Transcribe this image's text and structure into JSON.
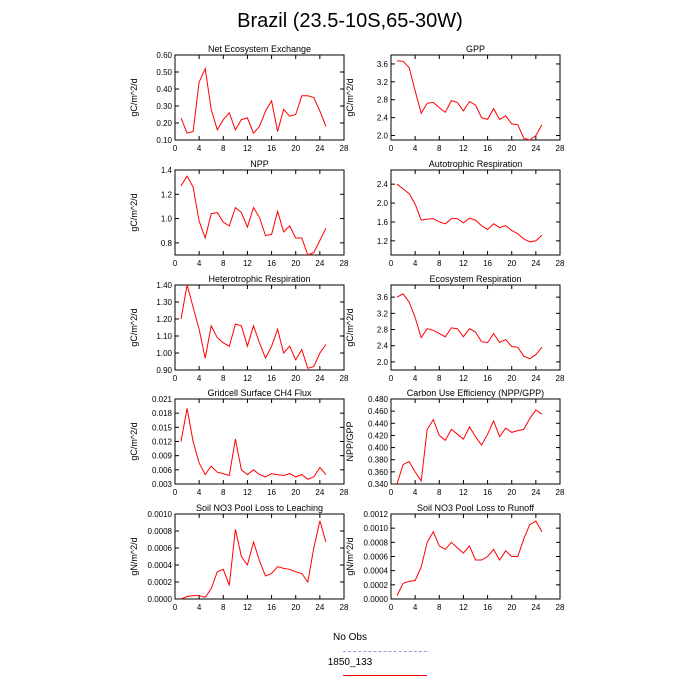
{
  "title": "Brazil (23.5-10S,65-30W)",
  "chart_data": [
    {
      "type": "line",
      "title": "Net Ecosystem Exchange",
      "ylabel": "gC/m^2/d",
      "xlim": [
        0,
        28
      ],
      "xticks": [
        "0",
        "4",
        "8",
        "12",
        "16",
        "20",
        "24",
        "28"
      ],
      "ylim": [
        0.1,
        0.6
      ],
      "yticks": [
        "0.10",
        "0.20",
        "0.30",
        "0.40",
        "0.50",
        "0.60"
      ],
      "series": [
        {
          "name": "1850_133",
          "color": "#ff0000",
          "x": [
            1,
            2,
            3,
            4,
            5,
            6,
            7,
            8,
            9,
            10,
            11,
            12,
            13,
            14,
            15,
            16,
            17,
            18,
            19,
            20,
            21,
            22,
            23,
            24,
            25
          ],
          "values": [
            0.23,
            0.14,
            0.15,
            0.44,
            0.52,
            0.28,
            0.16,
            0.22,
            0.26,
            0.16,
            0.22,
            0.23,
            0.14,
            0.18,
            0.27,
            0.33,
            0.15,
            0.28,
            0.24,
            0.25,
            0.36,
            0.36,
            0.35,
            0.27,
            0.18
          ]
        }
      ]
    },
    {
      "type": "line",
      "title": "GPP",
      "ylabel": "gC/m^2/d",
      "xlim": [
        0,
        28
      ],
      "xticks": [
        "0",
        "4",
        "8",
        "12",
        "16",
        "20",
        "24",
        "28"
      ],
      "ylim": [
        1.9,
        3.8
      ],
      "yticks": [
        "2.0",
        "2.4",
        "2.8",
        "3.2",
        "3.6"
      ],
      "series": [
        {
          "name": "1850_133",
          "color": "#ff0000",
          "x": [
            1,
            2,
            3,
            4,
            5,
            6,
            7,
            8,
            9,
            10,
            11,
            12,
            13,
            14,
            15,
            16,
            17,
            18,
            19,
            20,
            21,
            22,
            23,
            24,
            25
          ],
          "values": [
            3.67,
            3.66,
            3.52,
            3.0,
            2.5,
            2.72,
            2.74,
            2.62,
            2.52,
            2.78,
            2.74,
            2.55,
            2.76,
            2.68,
            2.4,
            2.36,
            2.6,
            2.36,
            2.44,
            2.26,
            2.24,
            1.94,
            1.9,
            2.0,
            2.24
          ]
        }
      ]
    },
    {
      "type": "line",
      "title": "NPP",
      "ylabel": "gC/m^2/d",
      "xlim": [
        0,
        28
      ],
      "xticks": [
        "0",
        "4",
        "8",
        "12",
        "16",
        "20",
        "24",
        "28"
      ],
      "ylim": [
        0.7,
        1.4
      ],
      "yticks": [
        "0.8",
        "1.0",
        "1.2",
        "1.4"
      ],
      "series": [
        {
          "name": "1850_133",
          "color": "#ff0000",
          "x": [
            1,
            2,
            3,
            4,
            5,
            6,
            7,
            8,
            9,
            10,
            11,
            12,
            13,
            14,
            15,
            16,
            17,
            18,
            19,
            20,
            21,
            22,
            23,
            24,
            25
          ],
          "values": [
            1.27,
            1.35,
            1.26,
            0.98,
            0.84,
            1.04,
            1.05,
            0.97,
            0.94,
            1.09,
            1.05,
            0.93,
            1.09,
            1.01,
            0.86,
            0.87,
            1.06,
            0.89,
            0.94,
            0.84,
            0.84,
            0.7,
            0.72,
            0.82,
            0.92
          ]
        }
      ]
    },
    {
      "type": "line",
      "title": "Autotrophic Respiration",
      "ylabel": "",
      "xlim": [
        0,
        28
      ],
      "xticks": [
        "0",
        "4",
        "8",
        "12",
        "16",
        "20",
        "24",
        "28"
      ],
      "ylim": [
        0.9,
        2.7
      ],
      "yticks": [
        "1.2",
        "1.6",
        "2.0",
        "2.4"
      ],
      "series": [
        {
          "name": "1850_133",
          "color": "#ff0000",
          "x": [
            1,
            2,
            3,
            4,
            5,
            6,
            7,
            8,
            9,
            10,
            11,
            12,
            13,
            14,
            15,
            16,
            17,
            18,
            19,
            20,
            21,
            22,
            23,
            24,
            25
          ],
          "values": [
            2.4,
            2.3,
            2.2,
            1.98,
            1.64,
            1.66,
            1.67,
            1.6,
            1.56,
            1.67,
            1.67,
            1.58,
            1.68,
            1.64,
            1.52,
            1.44,
            1.56,
            1.48,
            1.52,
            1.42,
            1.35,
            1.24,
            1.18,
            1.2,
            1.32
          ]
        }
      ]
    },
    {
      "type": "line",
      "title": "Heterotrophic Respiration",
      "ylabel": "gC/m^2/d",
      "xlim": [
        0,
        28
      ],
      "xticks": [
        "0",
        "4",
        "8",
        "12",
        "16",
        "20",
        "24",
        "28"
      ],
      "ylim": [
        0.9,
        1.4
      ],
      "yticks": [
        "0.90",
        "1.00",
        "1.10",
        "1.20",
        "1.30",
        "1.40"
      ],
      "series": [
        {
          "name": "1850_133",
          "color": "#ff0000",
          "x": [
            1,
            2,
            3,
            4,
            5,
            6,
            7,
            8,
            9,
            10,
            11,
            12,
            13,
            14,
            15,
            16,
            17,
            18,
            19,
            20,
            21,
            22,
            23,
            24,
            25
          ],
          "values": [
            1.2,
            1.4,
            1.27,
            1.14,
            0.97,
            1.16,
            1.09,
            1.06,
            1.04,
            1.17,
            1.16,
            1.04,
            1.16,
            1.06,
            0.97,
            1.04,
            1.14,
            1.0,
            1.04,
            0.96,
            1.02,
            0.91,
            0.92,
            1.0,
            1.05
          ]
        }
      ]
    },
    {
      "type": "line",
      "title": "Ecosystem Respiration",
      "ylabel": "gC/m^2/d",
      "xlim": [
        0,
        28
      ],
      "xticks": [
        "0",
        "4",
        "8",
        "12",
        "16",
        "20",
        "24",
        "28"
      ],
      "ylim": [
        1.8,
        3.9
      ],
      "yticks": [
        "2.0",
        "2.4",
        "2.8",
        "3.2",
        "3.6"
      ],
      "series": [
        {
          "name": "1850_133",
          "color": "#ff0000",
          "x": [
            1,
            2,
            3,
            4,
            5,
            6,
            7,
            8,
            9,
            10,
            11,
            12,
            13,
            14,
            15,
            16,
            17,
            18,
            19,
            20,
            21,
            22,
            23,
            24,
            25
          ],
          "values": [
            3.6,
            3.68,
            3.48,
            3.1,
            2.6,
            2.82,
            2.78,
            2.7,
            2.62,
            2.84,
            2.82,
            2.62,
            2.82,
            2.74,
            2.5,
            2.48,
            2.7,
            2.48,
            2.55,
            2.38,
            2.36,
            2.14,
            2.08,
            2.18,
            2.36
          ]
        }
      ]
    },
    {
      "type": "line",
      "title": "Gridcell Surface CH4 Flux",
      "ylabel": "gC/m^2/d",
      "xlim": [
        0,
        28
      ],
      "xticks": [
        "0",
        "4",
        "8",
        "12",
        "16",
        "20",
        "24",
        "28"
      ],
      "ylim": [
        0.003,
        0.021
      ],
      "yticks": [
        "0.003",
        "0.006",
        "0.009",
        "0.012",
        "0.015",
        "0.018",
        "0.021"
      ],
      "series": [
        {
          "name": "1850_133",
          "color": "#ff0000",
          "x": [
            1,
            2,
            3,
            4,
            5,
            6,
            7,
            8,
            9,
            10,
            11,
            12,
            13,
            14,
            15,
            16,
            17,
            18,
            19,
            20,
            21,
            22,
            23,
            24,
            25
          ],
          "values": [
            0.012,
            0.019,
            0.012,
            0.0075,
            0.005,
            0.0068,
            0.0055,
            0.0052,
            0.0048,
            0.0125,
            0.006,
            0.005,
            0.006,
            0.005,
            0.0045,
            0.0052,
            0.005,
            0.0048,
            0.0052,
            0.0045,
            0.005,
            0.004,
            0.0045,
            0.0065,
            0.005
          ]
        }
      ]
    },
    {
      "type": "line",
      "title": "Carbon Use Efficiency (NPP/GPP)",
      "ylabel": "NPP/GPP",
      "xlim": [
        0,
        28
      ],
      "xticks": [
        "0",
        "4",
        "8",
        "12",
        "16",
        "20",
        "24",
        "28"
      ],
      "ylim": [
        0.34,
        0.48
      ],
      "yticks": [
        "0.340",
        "0.360",
        "0.380",
        "0.400",
        "0.420",
        "0.440",
        "0.460",
        "0.480"
      ],
      "series": [
        {
          "name": "1850_133",
          "color": "#ff0000",
          "x": [
            1,
            2,
            3,
            4,
            5,
            6,
            7,
            8,
            9,
            10,
            11,
            12,
            13,
            14,
            15,
            16,
            17,
            18,
            19,
            20,
            21,
            22,
            23,
            24,
            25
          ],
          "values": [
            0.34,
            0.372,
            0.377,
            0.36,
            0.345,
            0.43,
            0.446,
            0.42,
            0.412,
            0.43,
            0.422,
            0.414,
            0.434,
            0.418,
            0.404,
            0.422,
            0.444,
            0.418,
            0.432,
            0.425,
            0.428,
            0.43,
            0.448,
            0.462,
            0.455
          ]
        }
      ]
    },
    {
      "type": "line",
      "title": "Soil NO3 Pool Loss to Leaching",
      "ylabel": "gN/m^2/d",
      "xlim": [
        0,
        28
      ],
      "xticks": [
        "0",
        "4",
        "8",
        "12",
        "16",
        "20",
        "24",
        "28"
      ],
      "ylim": [
        0.0,
        0.001
      ],
      "yticks": [
        "0.0000",
        "0.0002",
        "0.0004",
        "0.0006",
        "0.0008",
        "0.0010"
      ],
      "series": [
        {
          "name": "1850_133",
          "color": "#ff0000",
          "x": [
            1,
            2,
            3,
            4,
            5,
            6,
            7,
            8,
            9,
            10,
            11,
            12,
            13,
            14,
            15,
            16,
            17,
            18,
            19,
            20,
            21,
            22,
            23,
            24,
            25
          ],
          "values": [
            0.0,
            3e-05,
            4e-05,
            4e-05,
            2e-05,
            0.00012,
            0.00032,
            0.00035,
            0.00016,
            0.00082,
            0.0005,
            0.0004,
            0.00067,
            0.00045,
            0.00027,
            0.0003,
            0.00038,
            0.00036,
            0.00035,
            0.00032,
            0.0003,
            0.0002,
            0.0006,
            0.00092,
            0.00067
          ]
        }
      ]
    },
    {
      "type": "line",
      "title": "Soil NO3 Pool Loss to Runoff",
      "ylabel": "gN/m^2/d",
      "xlim": [
        0,
        28
      ],
      "xticks": [
        "0",
        "4",
        "8",
        "12",
        "16",
        "20",
        "24",
        "28"
      ],
      "ylim": [
        0.0,
        0.0012
      ],
      "yticks": [
        "0.0000",
        "0.0002",
        "0.0004",
        "0.0006",
        "0.0008",
        "0.0010",
        "0.0012"
      ],
      "series": [
        {
          "name": "1850_133",
          "color": "#ff0000",
          "x": [
            1,
            2,
            3,
            4,
            5,
            6,
            7,
            8,
            9,
            10,
            11,
            12,
            13,
            14,
            15,
            16,
            17,
            18,
            19,
            20,
            21,
            22,
            23,
            24,
            25
          ],
          "values": [
            5e-05,
            0.00022,
            0.00025,
            0.00026,
            0.00045,
            0.0008,
            0.00095,
            0.00075,
            0.0007,
            0.0008,
            0.00072,
            0.00065,
            0.00075,
            0.00055,
            0.00055,
            0.0006,
            0.0007,
            0.00055,
            0.00068,
            0.0006,
            0.0006,
            0.00085,
            0.00105,
            0.0011,
            0.00095
          ]
        }
      ]
    }
  ],
  "legend": {
    "entries": [
      {
        "label": "No Obs",
        "color": "#9999ee",
        "style": "dashed"
      },
      {
        "label": "1850_133",
        "color": "#ff0000",
        "style": "solid"
      }
    ]
  }
}
